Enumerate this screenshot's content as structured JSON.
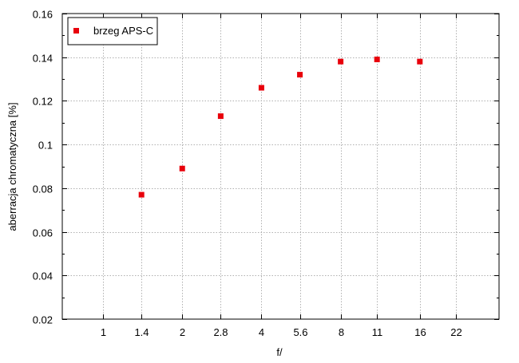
{
  "chart_data": {
    "type": "scatter",
    "xlabel": "f/",
    "ylabel": "aberracja chromatyczna [%]",
    "x_scale": "log",
    "x_ticks": [
      "1",
      "1.4",
      "2",
      "2.8",
      "4",
      "5.6",
      "8",
      "11",
      "16",
      "22"
    ],
    "x_tick_values": [
      1,
      1.4,
      2,
      2.8,
      4,
      5.6,
      8,
      11,
      16,
      22
    ],
    "xlim": [
      0.7,
      32
    ],
    "ylim": [
      0.02,
      0.16
    ],
    "y_ticks": [
      "0.02",
      "0.04",
      "0.06",
      "0.08",
      "0.1",
      "0.12",
      "0.14",
      "0.16"
    ],
    "y_tick_values": [
      0.02,
      0.04,
      0.06,
      0.08,
      0.1,
      0.12,
      0.14,
      0.16
    ],
    "grid": true,
    "legend_position": "top-left",
    "series": [
      {
        "name": "brzeg APS-C",
        "color": "#e8000b",
        "marker": "square",
        "x": [
          1.4,
          2,
          2.8,
          4,
          5.6,
          8,
          11,
          16
        ],
        "y": [
          0.077,
          0.089,
          0.113,
          0.126,
          0.132,
          0.138,
          0.139,
          0.138
        ]
      }
    ]
  }
}
